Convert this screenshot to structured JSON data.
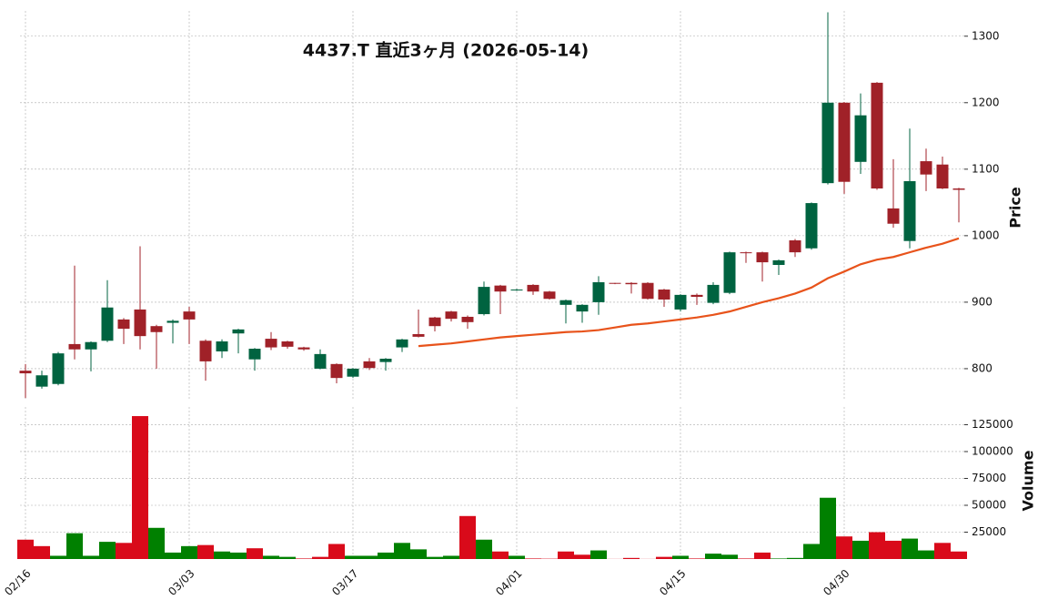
{
  "chart_data": {
    "type": "candlestick",
    "title": "4437.T  直近3ヶ月 (2026-05-14)",
    "ylabel": "Price",
    "grid": true,
    "up_color": "#006340",
    "down_color": "#a02128",
    "categories": [
      "02/16",
      null,
      null,
      null,
      null,
      null,
      null,
      null,
      null,
      null,
      "03/03",
      null,
      null,
      null,
      null,
      null,
      null,
      null,
      null,
      null,
      "03/17",
      null,
      null,
      null,
      null,
      null,
      null,
      null,
      null,
      null,
      "04/01",
      null,
      null,
      null,
      null,
      null,
      null,
      null,
      null,
      null,
      "04/15",
      null,
      null,
      null,
      null,
      null,
      null,
      null,
      null,
      null,
      "04/30",
      null,
      null,
      null,
      null,
      null,
      null,
      null
    ],
    "open": [
      797,
      773,
      777,
      837,
      829,
      842,
      874,
      889,
      864,
      869,
      886,
      842,
      826,
      853,
      814,
      845,
      841,
      832,
      800,
      807,
      788,
      811,
      810,
      832,
      852,
      877,
      886,
      878,
      882,
      925,
      918,
      926,
      916,
      896,
      886,
      900,
      929,
      929,
      929,
      919,
      889,
      911,
      899,
      914,
      975,
      975,
      956,
      993,
      981,
      1079,
      1200,
      1111,
      1230,
      1041,
      992,
      1112,
      1107,
      1071
    ],
    "high": [
      807,
      797,
      825,
      955,
      841,
      933,
      876,
      984,
      866,
      874,
      893,
      844,
      844,
      860,
      831,
      855,
      842,
      833,
      829,
      808,
      801,
      816,
      816,
      845,
      889,
      878,
      887,
      880,
      931,
      926,
      920,
      927,
      917,
      904,
      897,
      939,
      929,
      930,
      930,
      920,
      912,
      913,
      930,
      976,
      976,
      976,
      964,
      995,
      1050,
      1336,
      1201,
      1214,
      1231,
      1115,
      1161,
      1131,
      1119,
      1072
    ],
    "low": [
      756,
      770,
      775,
      814,
      796,
      840,
      837,
      829,
      800,
      838,
      837,
      782,
      816,
      823,
      797,
      828,
      830,
      827,
      799,
      778,
      786,
      798,
      797,
      825,
      847,
      856,
      871,
      860,
      880,
      882,
      917,
      911,
      904,
      868,
      869,
      881,
      927,
      913,
      904,
      893,
      886,
      896,
      897,
      912,
      959,
      931,
      941,
      968,
      979,
      1077,
      1063,
      1093,
      1069,
      1012,
      981,
      1067,
      1070,
      1020
    ],
    "close": [
      793,
      790,
      823,
      829,
      840,
      892,
      860,
      849,
      855,
      872,
      874,
      811,
      841,
      859,
      830,
      832,
      833,
      829,
      822,
      786,
      800,
      801,
      815,
      844,
      848,
      864,
      875,
      870,
      923,
      916,
      919,
      916,
      905,
      903,
      896,
      930,
      928,
      927,
      905,
      904,
      911,
      908,
      926,
      975,
      974,
      960,
      963,
      975,
      1049,
      1200,
      1081,
      1181,
      1071,
      1018,
      1082,
      1092,
      1071,
      1069
    ],
    "series": [
      {
        "color": "#e8531b",
        "values": [
          null,
          null,
          null,
          null,
          null,
          null,
          null,
          null,
          null,
          null,
          null,
          null,
          null,
          null,
          null,
          null,
          null,
          null,
          null,
          null,
          null,
          null,
          null,
          null,
          834,
          836,
          838,
          841,
          844,
          847,
          849,
          851,
          853,
          855,
          856,
          858,
          862,
          866,
          868,
          871,
          874,
          877,
          881,
          886,
          893,
          900,
          906,
          913,
          922,
          936,
          946,
          957,
          964,
          968,
          975,
          982,
          988,
          996
        ]
      }
    ],
    "ylim": [
      752,
      1338
    ],
    "yticks": [
      800,
      900,
      1000,
      1100,
      1200,
      1300
    ],
    "volume": {
      "ylabel": "Volume",
      "up_color": "#008000",
      "down_color": "#d90a1a",
      "values": [
        18000,
        12000,
        3000,
        24000,
        3000,
        16000,
        15000,
        133000,
        29000,
        6000,
        12000,
        13000,
        7000,
        6000,
        10000,
        3000,
        2000,
        500,
        2000,
        14000,
        3000,
        3000,
        6000,
        15000,
        9000,
        2000,
        3000,
        40000,
        18000,
        7000,
        3000,
        500,
        300,
        7000,
        4000,
        8000,
        100,
        1000,
        100,
        2000,
        3000,
        500,
        5000,
        4000,
        500,
        6000,
        500,
        1000,
        14000,
        57000,
        21000,
        17000,
        25000,
        17000,
        19000,
        8000,
        15000,
        7000
      ],
      "ylim": [
        0,
        141500
      ],
      "yticks": [
        25000,
        50000,
        75000,
        100000,
        125000
      ]
    }
  }
}
